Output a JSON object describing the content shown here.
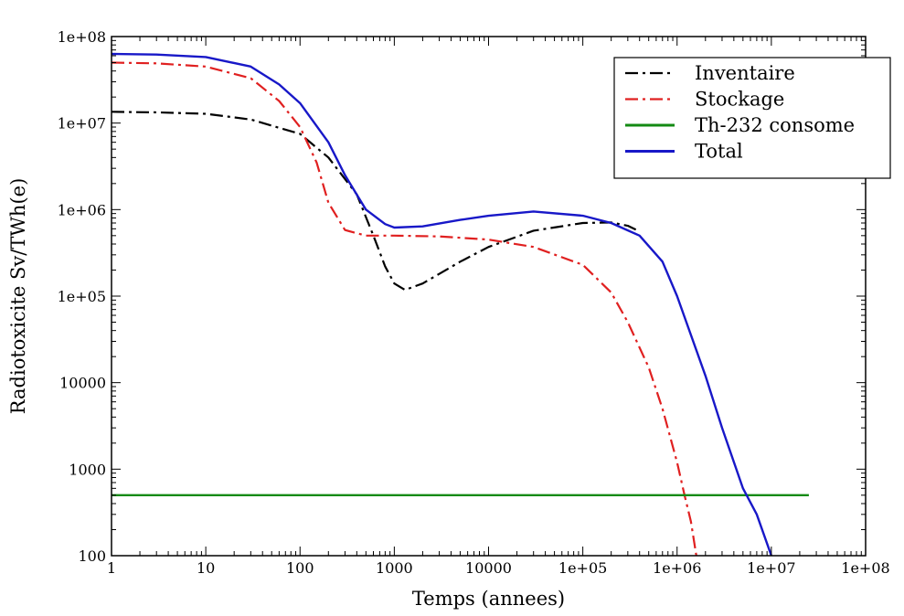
{
  "chart_data": {
    "type": "line",
    "title": "",
    "xlabel": "Temps (annees)",
    "ylabel": "Radiotoxicite Sv/TWh(e)",
    "x_scale": "log",
    "y_scale": "log",
    "xlim": [
      1,
      100000000
    ],
    "ylim": [
      100,
      100000000
    ],
    "x_ticks": [
      {
        "value": 1,
        "label": "1"
      },
      {
        "value": 10,
        "label": "10"
      },
      {
        "value": 100,
        "label": "100"
      },
      {
        "value": 1000,
        "label": "1000"
      },
      {
        "value": 10000,
        "label": "10000"
      },
      {
        "value": 100000,
        "label": "1e+05"
      },
      {
        "value": 1000000,
        "label": "1e+06"
      },
      {
        "value": 10000000,
        "label": "1e+07"
      },
      {
        "value": 100000000,
        "label": "1e+08"
      }
    ],
    "y_ticks": [
      {
        "value": 100,
        "label": "100"
      },
      {
        "value": 1000,
        "label": "1000"
      },
      {
        "value": 10000,
        "label": "10000"
      },
      {
        "value": 100000,
        "label": "1e+05"
      },
      {
        "value": 1000000,
        "label": "1e+06"
      },
      {
        "value": 10000000,
        "label": "1e+07"
      },
      {
        "value": 100000000,
        "label": "1e+08"
      }
    ],
    "grid": false,
    "legend_position": "top-right",
    "series": [
      {
        "name": "Inventaire",
        "color": "#000000",
        "style": "dash-dot",
        "points": [
          [
            1,
            13500000
          ],
          [
            3,
            13300000
          ],
          [
            10,
            12800000
          ],
          [
            30,
            11000000
          ],
          [
            100,
            7500000
          ],
          [
            200,
            4000000
          ],
          [
            400,
            1500000
          ],
          [
            600,
            500000
          ],
          [
            800,
            220000
          ],
          [
            1000,
            140000
          ],
          [
            1300,
            118000
          ],
          [
            2000,
            140000
          ],
          [
            5000,
            250000
          ],
          [
            10000,
            370000
          ],
          [
            30000,
            570000
          ],
          [
            100000,
            700000
          ],
          [
            200000,
            710000
          ],
          [
            300000,
            650000
          ],
          [
            400000,
            560000
          ]
        ]
      },
      {
        "name": "Stockage",
        "color": "#e02020",
        "style": "dash-dot",
        "points": [
          [
            1,
            50000000
          ],
          [
            3,
            49000000
          ],
          [
            10,
            45000000
          ],
          [
            30,
            33000000
          ],
          [
            60,
            18000000
          ],
          [
            100,
            9000000
          ],
          [
            150,
            3500000
          ],
          [
            200,
            1200000
          ],
          [
            300,
            580000
          ],
          [
            500,
            500000
          ],
          [
            1000,
            500000
          ],
          [
            3000,
            490000
          ],
          [
            10000,
            450000
          ],
          [
            30000,
            370000
          ],
          [
            100000,
            230000
          ],
          [
            200000,
            110000
          ],
          [
            300000,
            50000
          ],
          [
            500000,
            15000
          ],
          [
            700000,
            5000
          ],
          [
            1000000,
            1200
          ],
          [
            1200000,
            500
          ],
          [
            1400000,
            250
          ],
          [
            1600000,
            100
          ]
        ]
      },
      {
        "name": "Th-232 consome",
        "color": "#138a13",
        "style": "solid",
        "points": [
          [
            1,
            500
          ],
          [
            25000000,
            500
          ]
        ]
      },
      {
        "name": "Total",
        "color": "#1818c8",
        "style": "solid",
        "points": [
          [
            1,
            63000000
          ],
          [
            3,
            62000000
          ],
          [
            10,
            58000000
          ],
          [
            30,
            45000000
          ],
          [
            60,
            28000000
          ],
          [
            100,
            17000000
          ],
          [
            200,
            6000000
          ],
          [
            300,
            2500000
          ],
          [
            500,
            1000000
          ],
          [
            800,
            680000
          ],
          [
            1000,
            620000
          ],
          [
            2000,
            640000
          ],
          [
            5000,
            760000
          ],
          [
            10000,
            850000
          ],
          [
            30000,
            950000
          ],
          [
            100000,
            850000
          ],
          [
            200000,
            700000
          ],
          [
            400000,
            500000
          ],
          [
            700000,
            250000
          ],
          [
            1000000,
            100000
          ],
          [
            2000000,
            12000
          ],
          [
            3000000,
            3000
          ],
          [
            5000000,
            600
          ],
          [
            7000000,
            300
          ],
          [
            10000000,
            100
          ]
        ]
      }
    ]
  }
}
